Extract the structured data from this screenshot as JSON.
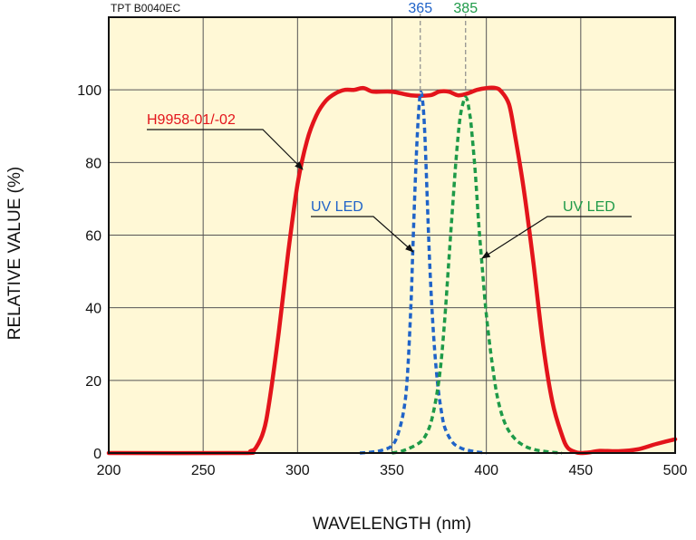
{
  "chart_data": {
    "type": "line",
    "figure_code": "TPT B0040EC",
    "xlabel": "WAVELENGTH (nm)",
    "ylabel": "RELATIVE VALUE  (%)",
    "xlim": [
      200,
      500
    ],
    "ylim": [
      0,
      120
    ],
    "xticks": [
      200,
      250,
      300,
      350,
      400,
      450,
      500
    ],
    "yticks": [
      0,
      20,
      40,
      60,
      80,
      100
    ],
    "grid": true,
    "colors": {
      "background": "#fff8d6",
      "grid": "#555555",
      "filter": "#e3141b",
      "uv365": "#1f63c8",
      "uv385": "#1e9a48"
    },
    "series": [
      {
        "name": "H9958-01/-02",
        "style": "solid",
        "color": "#e3141b",
        "x": [
          200,
          270,
          275,
          278,
          282,
          285,
          290,
          295,
          300,
          305,
          310,
          315,
          320,
          325,
          330,
          335,
          340,
          350,
          360,
          370,
          375,
          380,
          385,
          390,
          395,
          400,
          405,
          408,
          412,
          415,
          420,
          425,
          430,
          435,
          440,
          443,
          447,
          450,
          455,
          460,
          470,
          480,
          490,
          500
        ],
        "y": [
          0,
          0,
          0.5,
          1.5,
          6,
          14,
          33,
          55,
          74,
          86,
          93,
          97,
          99,
          100,
          100,
          100.5,
          99.5,
          99.5,
          98.5,
          98.5,
          99.5,
          99.5,
          98.5,
          99,
          100,
          100.5,
          100.5,
          99.5,
          96,
          88,
          72,
          52,
          30,
          14,
          5,
          1.5,
          0.3,
          0,
          0.2,
          0.6,
          0.5,
          1,
          2.5,
          3.8
        ]
      },
      {
        "name": "UV LED",
        "peak_label": "365",
        "style": "dashed",
        "color": "#1f63c8",
        "x": [
          333,
          340,
          345,
          350,
          353,
          356,
          358,
          360,
          361,
          362,
          363,
          364,
          365,
          366,
          367,
          368,
          370,
          372,
          374,
          376,
          378,
          382,
          386,
          390,
          395,
          400
        ],
        "y": [
          0,
          0.3,
          0.8,
          2,
          5,
          11,
          20,
          40,
          55,
          70,
          83,
          93,
          99,
          98,
          92,
          80,
          52,
          33,
          20,
          12,
          7,
          3,
          1.5,
          0.8,
          0.3,
          0
        ]
      },
      {
        "name": "UV LED",
        "peak_label": "385",
        "style": "dashed",
        "color": "#1e9a48",
        "x": [
          350,
          355,
          360,
          365,
          368,
          371,
          374,
          376,
          378,
          380,
          382,
          384,
          386,
          388,
          389,
          390,
          391,
          392,
          394,
          396,
          398,
          400,
          403,
          406,
          410,
          415,
          420,
          425,
          430,
          435,
          440
        ],
        "y": [
          0,
          0.5,
          1.5,
          3,
          5,
          9,
          17,
          25,
          37,
          52,
          67,
          81,
          92,
          97,
          98,
          97,
          94,
          90,
          78,
          63,
          50,
          38,
          25,
          15,
          8,
          4,
          2,
          1,
          0.5,
          0.2,
          0
        ]
      }
    ],
    "annotations": [
      {
        "text": "H9958-01/-02",
        "color": "#e3141b"
      },
      {
        "text": "UV LED",
        "color": "#1f63c8"
      },
      {
        "text": "UV LED",
        "color": "#1e9a48"
      }
    ]
  }
}
